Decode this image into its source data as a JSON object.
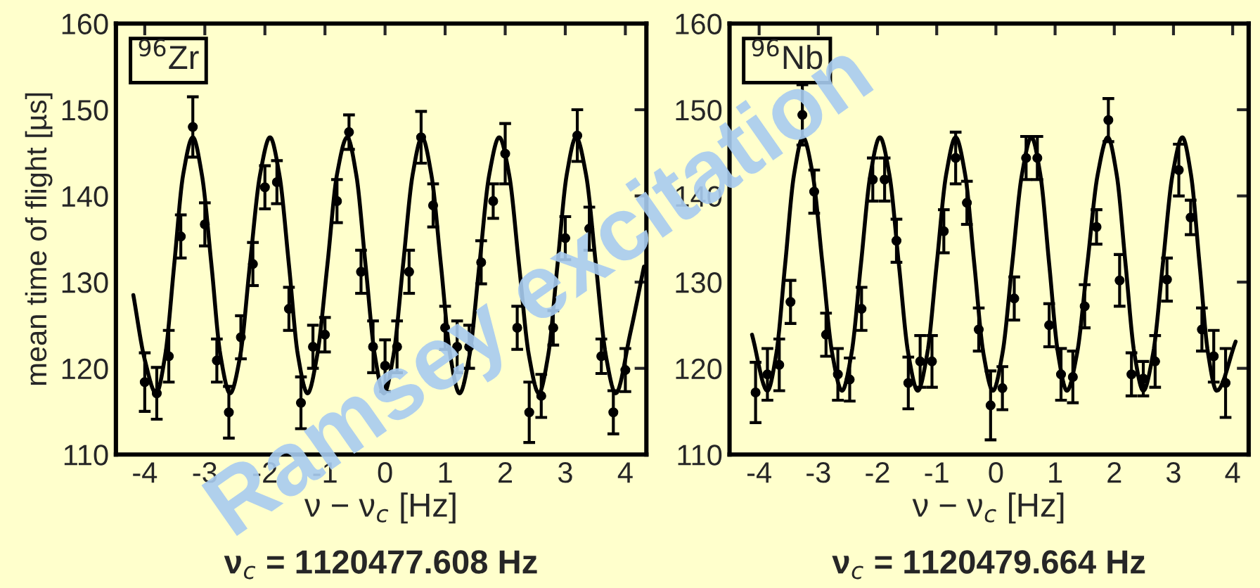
{
  "chart_data": [
    {
      "type": "scatter",
      "xlabel": "ν − ν$_{c}$ [Hz]",
      "ylabel": "mean time of flight [µs]",
      "xlim": [
        -4.48,
        4.35
      ],
      "ylim": [
        110,
        160
      ],
      "xticks": [
        -4,
        -3,
        -2,
        -1,
        0,
        1,
        2,
        3,
        4
      ],
      "yticks": [
        110,
        120,
        130,
        140,
        150,
        160
      ],
      "grid": false,
      "legend": false,
      "annotations": [
        "$^{96}$Zr",
        "ν$_{c}$ = 1120477.608 Hz",
        "Ramsey excitation"
      ],
      "series": [
        {
          "type": "line",
          "marker": "none",
          "color": "#000000",
          "x": [
            -4.19,
            -4.0,
            -3.81,
            -3.66,
            -3.51,
            -3.36,
            -3.2,
            -3.05,
            -2.89,
            -2.74,
            -2.58,
            -2.41,
            -2.25,
            -2.08,
            -1.915,
            -1.76,
            -1.6,
            -1.45,
            -1.29,
            -1.13,
            -0.96,
            -0.8,
            -0.63,
            -0.48,
            -0.325,
            -0.17,
            -0.02,
            0.14,
            0.3,
            0.46,
            0.615,
            0.77,
            0.93,
            1.085,
            1.24,
            1.405,
            1.57,
            1.735,
            1.9,
            2.065,
            2.23,
            2.395,
            2.56,
            2.715,
            2.87,
            3.025,
            3.18,
            3.345,
            3.51,
            3.675,
            3.84,
            4.08,
            4.31
          ],
          "values": [
            128.5,
            121,
            117.1,
            121.5,
            132,
            142.5,
            146.8,
            142.5,
            132,
            121.5,
            117.1,
            121.5,
            132,
            142.5,
            146.8,
            142.5,
            132,
            121.5,
            117.1,
            121.5,
            132,
            142.5,
            146.8,
            142.5,
            132,
            121.5,
            117.1,
            121.5,
            132,
            142.5,
            146.8,
            142.5,
            132,
            121.5,
            117.1,
            121.5,
            132,
            142.5,
            146.8,
            142.5,
            132,
            121.5,
            117.1,
            121.5,
            132,
            142.5,
            146.8,
            142.5,
            132,
            121.5,
            117.1,
            124,
            131.8
          ]
        },
        {
          "marker": "circle",
          "color": "#000000",
          "x": [
            -4.0,
            -3.8,
            -3.6,
            -3.4,
            -3.2,
            -3.0,
            -2.8,
            -2.6,
            -2.4,
            -2.2,
            -2.0,
            -1.8,
            -1.6,
            -1.4,
            -1.2,
            -1.0,
            -0.8,
            -0.6,
            -0.4,
            -0.2,
            0.0,
            0.2,
            0.4,
            0.6,
            0.8,
            1.0,
            1.2,
            1.4,
            1.6,
            1.8,
            2.0,
            2.2,
            2.4,
            2.6,
            2.8,
            3.0,
            3.2,
            3.4,
            3.6,
            3.8,
            4.0
          ],
          "values": [
            118.4,
            117.1,
            121.4,
            135.3,
            148.0,
            136.7,
            120.9,
            114.9,
            123.6,
            132.1,
            141.0,
            141.6,
            126.9,
            116.0,
            122.5,
            123.9,
            139.4,
            147.4,
            131.2,
            122.5,
            120.3,
            122.5,
            131.2,
            146.8,
            138.9,
            124.7,
            122.5,
            122.5,
            132.3,
            139.4,
            144.9,
            124.7,
            114.9,
            116.8,
            124.7,
            135.1,
            147.0,
            136.2,
            121.4,
            114.9,
            119.8
          ],
          "errors": [
            3.4,
            3,
            3,
            2.5,
            3.5,
            2.5,
            2.5,
            3,
            2.5,
            2.5,
            2.5,
            2.5,
            2.5,
            3,
            2.5,
            2,
            2.5,
            2,
            2.5,
            3,
            3,
            3,
            2.5,
            3,
            2.5,
            2.5,
            3,
            2.5,
            2.5,
            2,
            3.5,
            2.5,
            3.5,
            2.5,
            2,
            2.5,
            3,
            2.5,
            2,
            2.5,
            2.5
          ]
        }
      ]
    },
    {
      "type": "scatter",
      "xlabel": "ν − ν$_{c}$ [Hz]",
      "xlim": [
        -4.5,
        4.27
      ],
      "ylim": [
        110,
        160
      ],
      "xticks": [
        -4,
        -3,
        -2,
        -1,
        0,
        1,
        2,
        3,
        4
      ],
      "yticks": [
        110,
        120,
        130,
        140,
        150,
        160
      ],
      "grid": false,
      "legend": false,
      "annotations": [
        "$^{96}$Nb",
        "ν$_{c}$ = 1120479.664 Hz"
      ],
      "series": [
        {
          "type": "line",
          "marker": "none",
          "color": "#000000",
          "x": [
            -4.12,
            -3.86,
            -3.71,
            -3.56,
            -3.41,
            -3.26,
            -3.095,
            -2.93,
            -2.765,
            -2.6,
            -2.44,
            -2.28,
            -2.12,
            -1.96,
            -1.8,
            -1.64,
            -1.48,
            -1.32,
            -1.16,
            -1.0,
            -0.84,
            -0.68,
            -0.52,
            -0.365,
            -0.21,
            -0.05,
            0.11,
            0.275,
            0.44,
            0.6,
            0.75,
            0.9,
            1.05,
            1.2,
            1.37,
            1.545,
            1.72,
            1.89,
            2.04,
            2.19,
            2.34,
            2.49,
            2.655,
            2.82,
            2.985,
            3.15,
            3.295,
            3.44,
            3.585,
            3.73,
            4.05
          ],
          "values": [
            123.9,
            117.4,
            121.7,
            132.1,
            142.5,
            146.8,
            142.5,
            132.1,
            121.7,
            117.4,
            121.7,
            132.1,
            142.5,
            146.8,
            142.5,
            132.1,
            121.7,
            117.4,
            121.7,
            132.1,
            142.5,
            146.8,
            142.5,
            132.1,
            121.7,
            117.4,
            121.7,
            132.1,
            142.5,
            146.8,
            142.5,
            132.1,
            121.7,
            117.4,
            121.7,
            132.1,
            142.5,
            146.8,
            142.5,
            132.1,
            121.7,
            117.4,
            121.7,
            132.1,
            142.5,
            146.8,
            142.5,
            132.1,
            121.7,
            117.4,
            123.1
          ]
        },
        {
          "marker": "circle",
          "color": "#000000",
          "x": [
            -4.06,
            -3.86,
            -3.66,
            -3.47,
            -3.27,
            -3.07,
            -2.87,
            -2.67,
            -2.47,
            -2.27,
            -2.08,
            -1.88,
            -1.68,
            -1.48,
            -1.28,
            -1.08,
            -0.88,
            -0.68,
            -0.49,
            -0.29,
            -0.09,
            0.11,
            0.31,
            0.51,
            0.7,
            0.9,
            1.1,
            1.3,
            1.5,
            1.7,
            1.9,
            2.09,
            2.29,
            2.49,
            2.69,
            2.89,
            3.09,
            3.29,
            3.48,
            3.68,
            3.88
          ],
          "values": [
            117.2,
            119.3,
            120.4,
            127.7,
            149.4,
            140.5,
            123.9,
            119.3,
            118.7,
            126.9,
            141.9,
            141.9,
            134.8,
            118.3,
            120.8,
            120.8,
            135.9,
            144.4,
            139.2,
            124.5,
            115.7,
            117.7,
            128.1,
            144.4,
            144.4,
            125.0,
            119.3,
            119.0,
            127.2,
            136.4,
            148.8,
            130.2,
            119.3,
            118.8,
            120.8,
            130.3,
            143.0,
            137.5,
            124.5,
            121.4,
            118.3
          ],
          "errors": [
            3.5,
            3,
            3,
            2.5,
            3.5,
            2.5,
            2.5,
            3,
            2.5,
            2.5,
            2.5,
            2.5,
            2.5,
            3,
            3,
            3,
            2.5,
            3,
            2.5,
            2.5,
            4,
            2.5,
            2.5,
            2.5,
            2.5,
            2.5,
            3,
            3,
            2.5,
            2,
            2.5,
            3,
            2.5,
            2,
            3,
            2.5,
            3,
            2,
            2.5,
            3,
            4
          ]
        }
      ]
    }
  ]
}
